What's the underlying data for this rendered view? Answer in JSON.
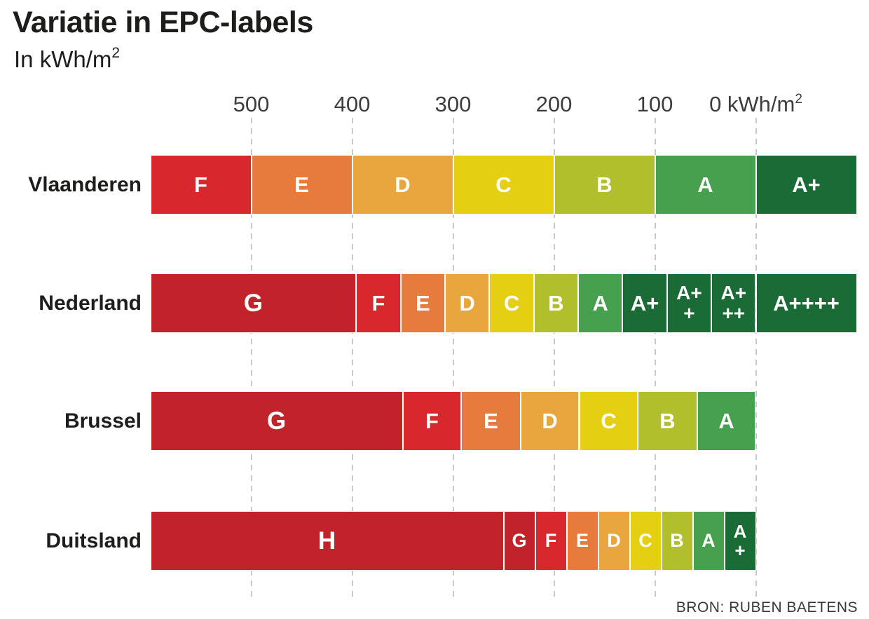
{
  "title": "Variatie in EPC-labels",
  "subtitle": {
    "base": "In kWh/m",
    "sup": "2"
  },
  "source": "BRON: RUBEN BAETENS",
  "colors": {
    "dark_red": "#c2232a",
    "red": "#d8282e",
    "orange": "#e77b3e",
    "light_orange": "#e9a63e",
    "yellow": "#e4cf12",
    "yellow_green": "#b2bf2c",
    "green": "#47a04e",
    "dark_green": "#1a6b35",
    "grid": "#c9c9c9",
    "text": "#1d1d1b"
  },
  "chart_data": {
    "type": "bar",
    "orientation": "horizontal-stacked",
    "title": "Variatie in EPC-labels",
    "unit": "kWh/m²",
    "axis": {
      "min": -100,
      "max": 600,
      "reversed": true,
      "grid": true,
      "ticks": [
        {
          "value": 500,
          "label": "500"
        },
        {
          "value": 400,
          "label": "400"
        },
        {
          "value": 300,
          "label": "300"
        },
        {
          "value": 200,
          "label": "200"
        },
        {
          "value": 100,
          "label": "100"
        },
        {
          "value": 0,
          "label": "0 kWh/m",
          "sup": "2"
        }
      ]
    },
    "rows": [
      {
        "label": "Vlaanderen",
        "segments": [
          {
            "grade": "F",
            "from": 600,
            "to": 500,
            "color": "#d8282e"
          },
          {
            "grade": "E",
            "from": 500,
            "to": 400,
            "color": "#e77b3e"
          },
          {
            "grade": "D",
            "from": 400,
            "to": 300,
            "color": "#e9a63e"
          },
          {
            "grade": "C",
            "from": 300,
            "to": 200,
            "color": "#e4cf12"
          },
          {
            "grade": "B",
            "from": 200,
            "to": 100,
            "color": "#b2bf2c"
          },
          {
            "grade": "A",
            "from": 100,
            "to": 0,
            "color": "#47a04e"
          },
          {
            "grade": "A+",
            "from": 0,
            "to": -100,
            "color": "#1a6b35"
          }
        ]
      },
      {
        "label": "Nederland",
        "segments": [
          {
            "grade": "G",
            "from": 600,
            "to": 396,
            "color": "#c2232a"
          },
          {
            "grade": "F",
            "from": 396,
            "to": 352,
            "color": "#d8282e"
          },
          {
            "grade": "E",
            "from": 352,
            "to": 308,
            "color": "#e77b3e"
          },
          {
            "grade": "D",
            "from": 308,
            "to": 264,
            "color": "#e9a63e"
          },
          {
            "grade": "C",
            "from": 264,
            "to": 220,
            "color": "#e4cf12"
          },
          {
            "grade": "B",
            "from": 220,
            "to": 176,
            "color": "#b2bf2c"
          },
          {
            "grade": "A",
            "from": 176,
            "to": 132,
            "color": "#47a04e"
          },
          {
            "grade": "A+",
            "from": 132,
            "to": 88,
            "color": "#1a6b35"
          },
          {
            "grade": "A++",
            "lines": [
              "A+",
              "+"
            ],
            "from": 88,
            "to": 44,
            "color": "#1a6b35"
          },
          {
            "grade": "A+++",
            "lines": [
              "A+",
              "++"
            ],
            "from": 44,
            "to": 0,
            "color": "#1a6b35"
          },
          {
            "grade": "A++++",
            "from": 0,
            "to": -100,
            "color": "#1a6b35"
          }
        ]
      },
      {
        "label": "Brussel",
        "segments": [
          {
            "grade": "G",
            "from": 600,
            "to": 350,
            "color": "#c2232a"
          },
          {
            "grade": "F",
            "from": 350,
            "to": 291.7,
            "color": "#d8282e"
          },
          {
            "grade": "E",
            "from": 291.7,
            "to": 233.3,
            "color": "#e77b3e"
          },
          {
            "grade": "D",
            "from": 233.3,
            "to": 175,
            "color": "#e9a63e"
          },
          {
            "grade": "C",
            "from": 175,
            "to": 116.7,
            "color": "#e4cf12"
          },
          {
            "grade": "B",
            "from": 116.7,
            "to": 58.3,
            "color": "#b2bf2c"
          },
          {
            "grade": "A",
            "from": 58.3,
            "to": 0,
            "color": "#47a04e"
          }
        ]
      },
      {
        "label": "Duitsland",
        "segments": [
          {
            "grade": "H",
            "from": 600,
            "to": 250,
            "color": "#c2232a"
          },
          {
            "grade": "G",
            "from": 250,
            "to": 218.75,
            "color": "#c2232a"
          },
          {
            "grade": "F",
            "from": 218.75,
            "to": 187.5,
            "color": "#d8282e"
          },
          {
            "grade": "E",
            "from": 187.5,
            "to": 156.25,
            "color": "#e77b3e"
          },
          {
            "grade": "D",
            "from": 156.25,
            "to": 125,
            "color": "#e9a63e"
          },
          {
            "grade": "C",
            "from": 125,
            "to": 93.75,
            "color": "#e4cf12"
          },
          {
            "grade": "B",
            "from": 93.75,
            "to": 62.5,
            "color": "#b2bf2c"
          },
          {
            "grade": "A",
            "from": 62.5,
            "to": 31.25,
            "color": "#47a04e"
          },
          {
            "grade": "A+",
            "lines": [
              "A",
              "+"
            ],
            "from": 31.25,
            "to": 0,
            "color": "#1a6b35"
          }
        ]
      }
    ]
  }
}
